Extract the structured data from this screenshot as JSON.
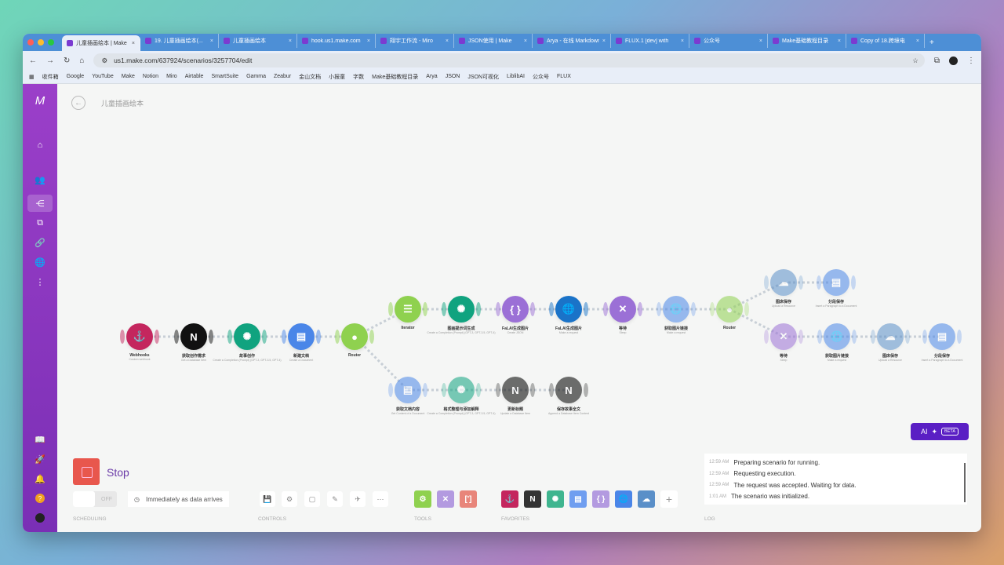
{
  "browser": {
    "tabs": [
      "儿童插画绘本 | Make",
      "19. 儿童插画绘本(...",
      "儿童插画绘本",
      "hook.us1.make.com",
      "翔宇工作流 - Miro",
      "JSON使用 | Make",
      "Arya - 在线 Markdown",
      "FLUX.1 [dev] with",
      "公众号",
      "Make基础教程目录",
      "Copy of 18.跨境电"
    ],
    "new_tab": "+",
    "url": "us1.make.com/637924/scenarios/3257704/edit",
    "bookmarks": [
      "收件箱",
      "Google",
      "YouTube",
      "Make",
      "Notion",
      "Miro",
      "Airtable",
      "SmartSuite",
      "Gamma",
      "Zeabur",
      "金山文档",
      "小报童",
      "字数",
      "Make基础教程目录",
      "Arya",
      "JSON",
      "JSON可视化",
      "LiblibAI",
      "公众号",
      "FLUX"
    ]
  },
  "sidebar": {
    "logo": "M",
    "items": [
      "home-icon",
      "team-icon",
      "scenarios-icon",
      "apps-icon",
      "connections-icon",
      "webhooks-icon",
      "more-icon",
      "docs-icon",
      "rocket-icon",
      "notifications-icon",
      "help-icon",
      "avatar"
    ]
  },
  "scenario": {
    "title": "儿童插画绘本"
  },
  "colors": {
    "webhooks": "#c4265e",
    "notion": "#111111",
    "openai": "#10a37f",
    "gdocs": "#4a86e8",
    "router": "#8fd14f",
    "json": "#9b70d6",
    "http": "#1a73c8",
    "tools": "#9b70d6",
    "cloud": "#5a8fc8"
  },
  "nodes": [
    {
      "id": "webhooks",
      "glyph": "⚓",
      "color": "webhooks",
      "label": "Webhooks",
      "sub": "Custom webhook"
    },
    {
      "id": "notion1",
      "glyph": "N",
      "color": "notion",
      "label": "获取创作需求",
      "sub": "Get a Database Item"
    },
    {
      "id": "gpt1",
      "glyph": "✺",
      "color": "openai",
      "label": "故事创作",
      "sub": "Create a Completion (Prompt) (GPT-3, GPT-3.5, GPT-4)"
    },
    {
      "id": "doc1",
      "glyph": "▤",
      "color": "gdocs",
      "label": "新建文档",
      "sub": "Create a Document"
    },
    {
      "id": "router1",
      "glyph": "●",
      "color": "router",
      "label": "Router",
      "sub": ""
    },
    {
      "id": "iterator",
      "glyph": "☰",
      "color": "router",
      "label": "Iterator",
      "sub": ""
    },
    {
      "id": "gpt2",
      "glyph": "✺",
      "color": "openai",
      "label": "图画提示词生成",
      "sub": "Create a Completion (Prompt) (GPT-3, GPT-3.5, GPT-4)"
    },
    {
      "id": "json",
      "glyph": "{ }",
      "color": "json",
      "label": "FaLAI生成图片",
      "sub": "Create JSON"
    },
    {
      "id": "http1",
      "glyph": "🌐",
      "color": "http",
      "label": "FaLAI生成图片",
      "sub": "Make a request"
    },
    {
      "id": "sleep1",
      "glyph": "✕",
      "color": "tools",
      "label": "等待",
      "sub": "Sleep"
    },
    {
      "id": "http2",
      "glyph": "🌐",
      "color": "gdocs",
      "label": "获取图片链接",
      "sub": "Make a request"
    },
    {
      "id": "router2",
      "glyph": "●",
      "color": "router",
      "label": "Router",
      "sub": ""
    },
    {
      "id": "cloud1",
      "glyph": "☁",
      "color": "cloud",
      "label": "图床保存",
      "sub": "Upload a Resource"
    },
    {
      "id": "doc2",
      "glyph": "▤",
      "color": "gdocs",
      "label": "分段保存",
      "sub": "Insert a Paragraph to a Document"
    },
    {
      "id": "sleep2",
      "glyph": "✕",
      "color": "tools",
      "label": "等待",
      "sub": "Sleep"
    },
    {
      "id": "http3",
      "glyph": "🌐",
      "color": "gdocs",
      "label": "获取图片链接",
      "sub": "Make a request"
    },
    {
      "id": "cloud2",
      "glyph": "☁",
      "color": "cloud",
      "label": "图床保存",
      "sub": "Upload a Resource"
    },
    {
      "id": "doc3",
      "glyph": "▤",
      "color": "gdocs",
      "label": "分段保存",
      "sub": "Insert a Paragraph to a Document"
    },
    {
      "id": "doc4",
      "glyph": "▤",
      "color": "gdocs",
      "label": "获取文档内容",
      "sub": "Get Content of a Document"
    },
    {
      "id": "gpt3",
      "glyph": "✺",
      "color": "openai",
      "label": "格式整理与添加解释",
      "sub": "Create a Completion (Prompt) (GPT-3, GPT-3.5, GPT-4)"
    },
    {
      "id": "notion2",
      "glyph": "N",
      "color": "notion",
      "label": "更新标题",
      "sub": "Update a Database Item"
    },
    {
      "id": "notion3",
      "glyph": "N",
      "color": "notion",
      "label": "保存故事全文",
      "sub": "Append a Database Item Content"
    }
  ],
  "bottom": {
    "stop_label": "Stop",
    "toggle": "OFF",
    "schedule": "Immediately as data arrives",
    "sections": {
      "scheduling": "SCHEDULING",
      "controls": "CONTROLS",
      "tools": "TOOLS",
      "favorites": "FAVORITES",
      "log": "LOG"
    },
    "add": "+",
    "log": [
      {
        "time": "12:59 AM",
        "msg": "Preparing scenario for running."
      },
      {
        "time": "12:59 AM",
        "msg": "Requesting execution."
      },
      {
        "time": "12:59 AM",
        "msg": "The request was accepted. Waiting for data."
      },
      {
        "time": "1:01 AM",
        "msg": "The scenario was initialized."
      }
    ]
  },
  "ai": {
    "label": "AI",
    "badge": "BETA"
  }
}
